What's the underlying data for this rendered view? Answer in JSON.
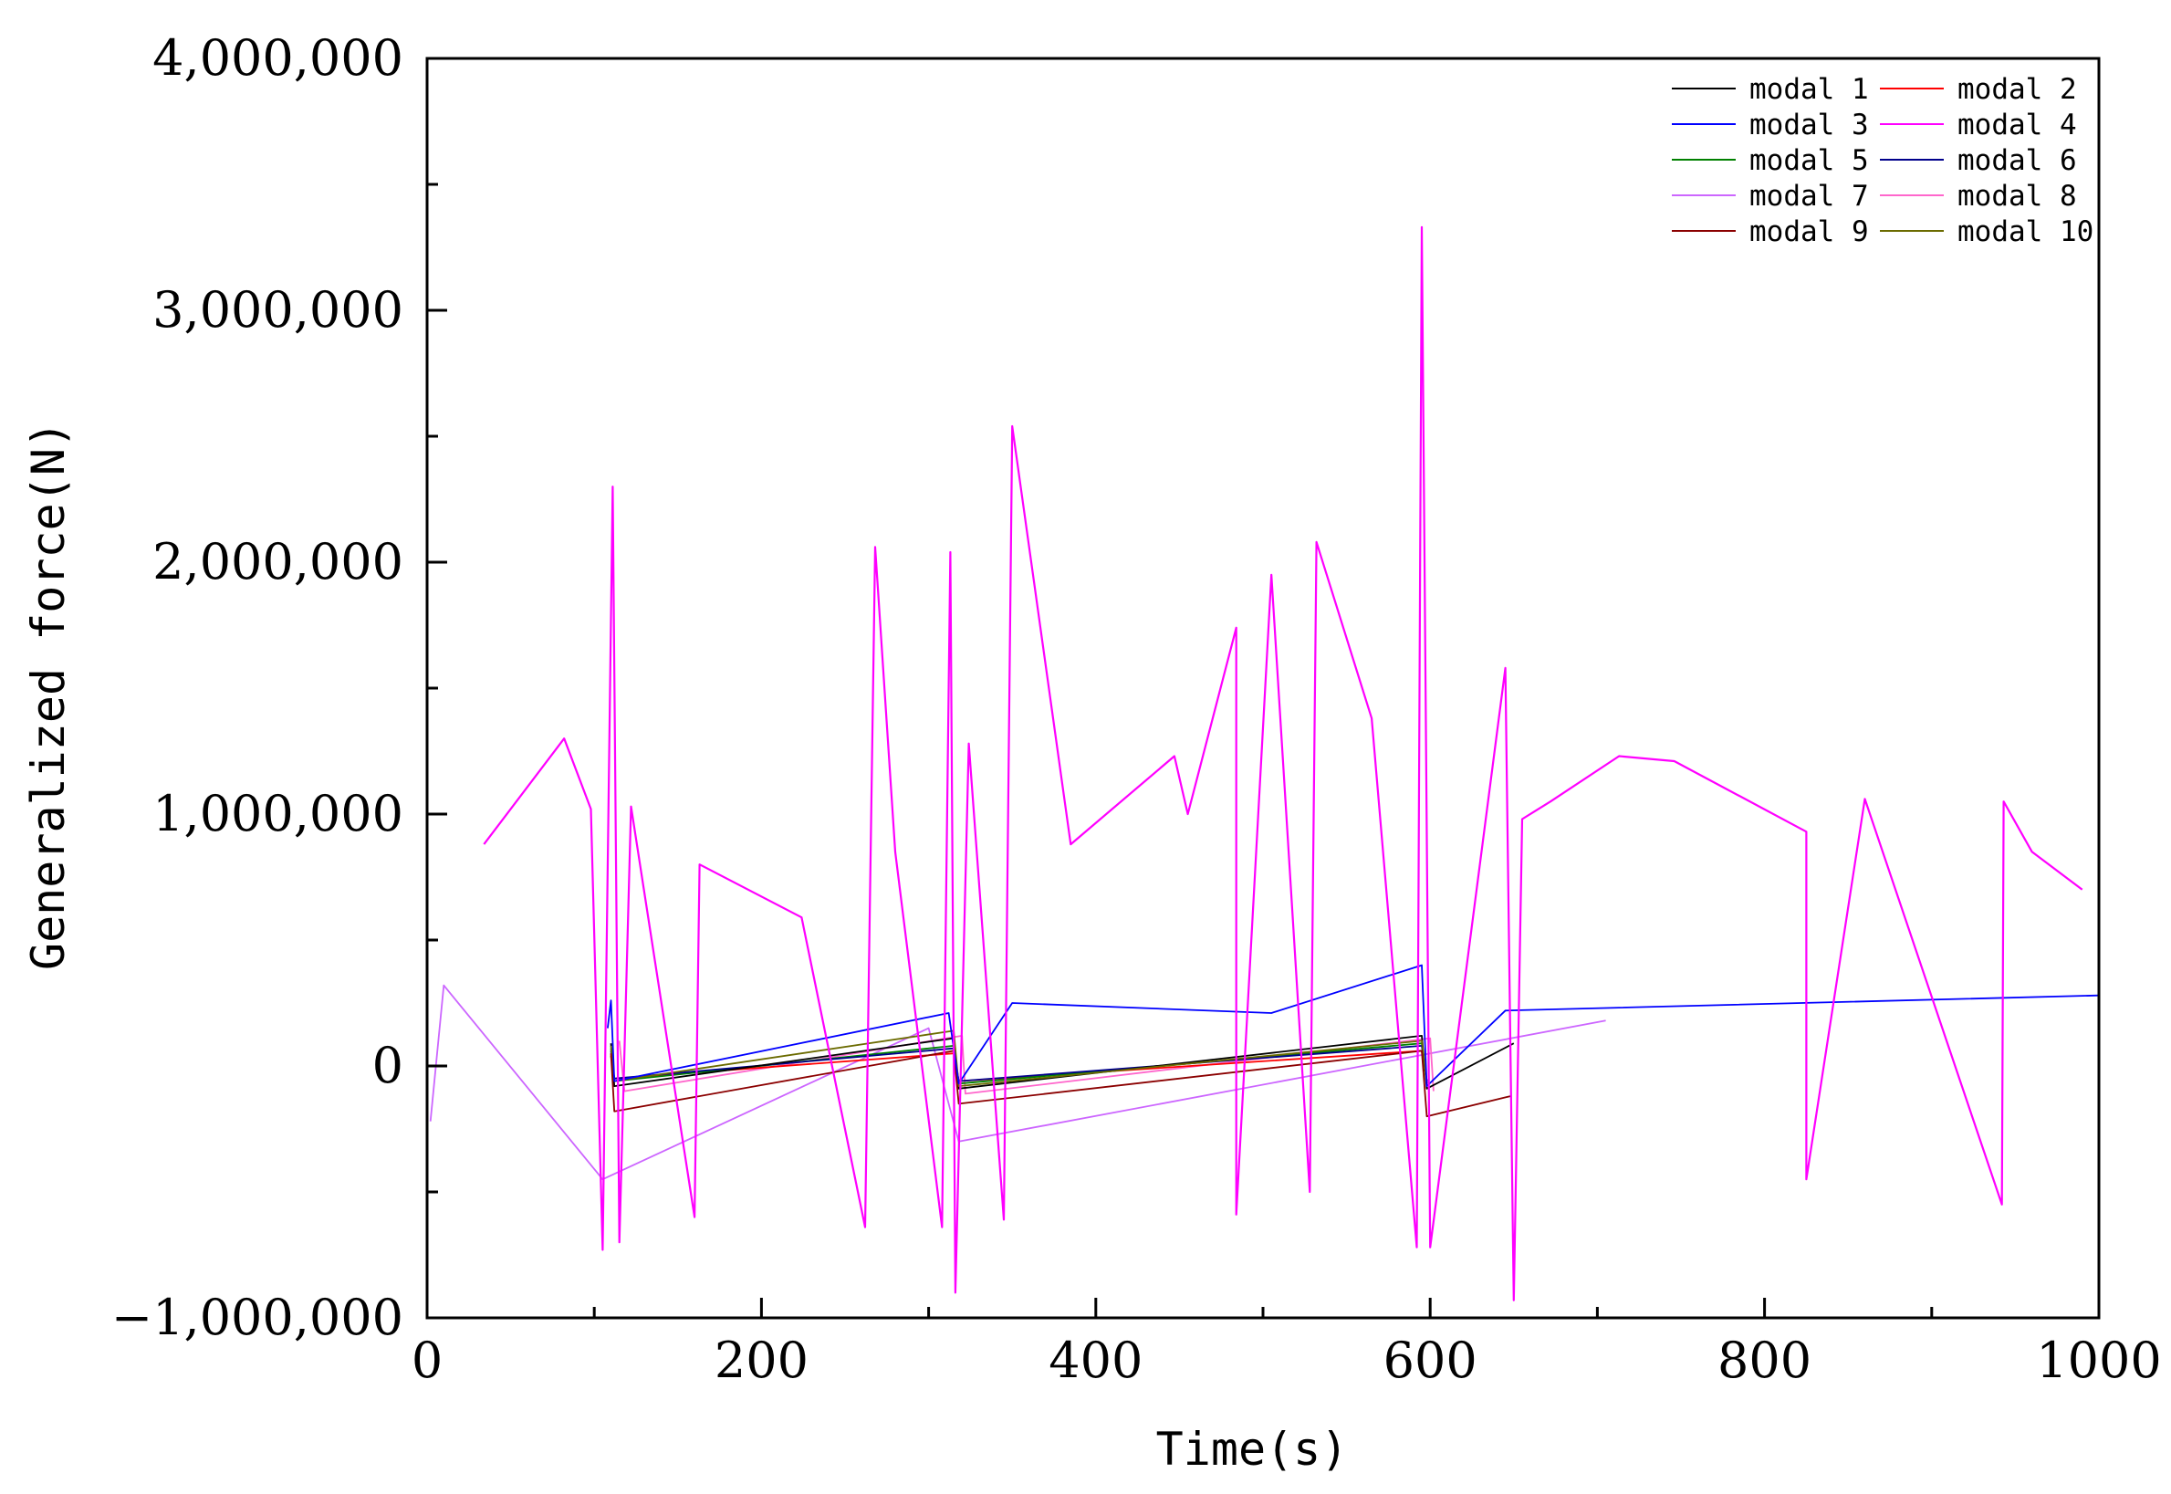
{
  "chart_data": {
    "type": "line",
    "title": "",
    "xlabel": "Time(s)",
    "ylabel": "Generalized force(N)",
    "xlim": [
      0,
      1000
    ],
    "ylim": [
      -1000000,
      4000000
    ],
    "x_ticks": [
      0,
      200,
      400,
      600,
      800,
      1000
    ],
    "x_tick_labels": [
      "0",
      "200",
      "400",
      "600",
      "800",
      "1000"
    ],
    "y_ticks": [
      -1000000,
      0,
      1000000,
      2000000,
      3000000,
      4000000
    ],
    "y_tick_labels": [
      "−1,000,000",
      "0",
      "1,000,000",
      "2,000,000",
      "3,000,000",
      "4,000,000"
    ],
    "grid": false,
    "legend_position": "top-right",
    "legend_columns": 2,
    "series": [
      {
        "name": "modal 1",
        "color": "#000000",
        "peak_values": [
          [
            110,
            90000
          ],
          [
            315,
            110000
          ],
          [
            595,
            120000
          ],
          [
            650,
            90000
          ]
        ],
        "trough_values": [
          [
            112,
            -80000
          ],
          [
            318,
            -90000
          ],
          [
            598,
            -90000
          ]
        ]
      },
      {
        "name": "modal 2",
        "color": "#ff0000",
        "peak_values": [
          [
            110,
            40000
          ],
          [
            315,
            50000
          ],
          [
            595,
            60000
          ]
        ],
        "trough_values": [
          [
            112,
            -50000
          ],
          [
            318,
            -60000
          ],
          [
            598,
            -60000
          ]
        ]
      },
      {
        "name": "modal 3",
        "color": "#0000ff",
        "peak_values": [
          [
            108,
            150000
          ],
          [
            110,
            260000
          ],
          [
            312,
            210000
          ],
          [
            350,
            250000
          ],
          [
            505,
            210000
          ],
          [
            595,
            400000
          ],
          [
            645,
            220000
          ],
          [
            1000,
            280000
          ]
        ],
        "trough_values": [
          [
            112,
            -60000
          ],
          [
            318,
            -70000
          ],
          [
            598,
            -80000
          ]
        ]
      },
      {
        "name": "modal 4",
        "color": "#ff00ff",
        "peak_values": [
          [
            34,
            880000
          ],
          [
            82,
            1300000
          ],
          [
            98,
            1020000
          ],
          [
            111,
            2300000
          ],
          [
            122,
            1030000
          ],
          [
            163,
            800000
          ],
          [
            224,
            590000
          ],
          [
            268,
            2060000
          ],
          [
            280,
            850000
          ],
          [
            313,
            2040000
          ],
          [
            324,
            1280000
          ],
          [
            350,
            2540000
          ],
          [
            385,
            880000
          ],
          [
            447,
            1230000
          ],
          [
            455,
            1000000
          ],
          [
            484,
            1740000
          ],
          [
            505,
            1950000
          ],
          [
            532,
            2080000
          ],
          [
            565,
            1380000
          ],
          [
            595,
            3330000
          ],
          [
            645,
            1580000
          ],
          [
            655,
            980000
          ],
          [
            672,
            1050000
          ],
          [
            713,
            1230000
          ],
          [
            746,
            1210000
          ],
          [
            825,
            930000
          ],
          [
            860,
            1060000
          ],
          [
            943,
            1050000
          ],
          [
            960,
            850000
          ],
          [
            990,
            700000
          ]
        ],
        "trough_values": [
          [
            105,
            -730000
          ],
          [
            115,
            -700000
          ],
          [
            160,
            -600000
          ],
          [
            262,
            -640000
          ],
          [
            308,
            -640000
          ],
          [
            316,
            -900000
          ],
          [
            345,
            -610000
          ],
          [
            484,
            -590000
          ],
          [
            528,
            -500000
          ],
          [
            592,
            -720000
          ],
          [
            600,
            -720000
          ],
          [
            650,
            -930000
          ],
          [
            825,
            -450000
          ],
          [
            942,
            -550000
          ]
        ]
      },
      {
        "name": "modal 5",
        "color": "#008000",
        "peak_values": [
          [
            110,
            70000
          ],
          [
            315,
            80000
          ],
          [
            595,
            90000
          ]
        ],
        "trough_values": [
          [
            112,
            -60000
          ],
          [
            318,
            -70000
          ],
          [
            598,
            -70000
          ]
        ]
      },
      {
        "name": "modal 6",
        "color": "#00008b",
        "peak_values": [
          [
            110,
            60000
          ],
          [
            315,
            70000
          ],
          [
            595,
            80000
          ]
        ],
        "trough_values": [
          [
            112,
            -50000
          ],
          [
            318,
            -60000
          ],
          [
            598,
            -60000
          ]
        ]
      },
      {
        "name": "modal 7",
        "color": "#cc66ff",
        "peak_values": [
          [
            10,
            320000
          ],
          [
            300,
            150000
          ],
          [
            705,
            180000
          ]
        ],
        "trough_values": [
          [
            2,
            -220000
          ],
          [
            105,
            -450000
          ],
          [
            318,
            -300000
          ]
        ]
      },
      {
        "name": "modal 8",
        "color": "#ff66cc",
        "peak_values": [
          [
            115,
            100000
          ],
          [
            320,
            120000
          ],
          [
            600,
            110000
          ]
        ],
        "trough_values": [
          [
            118,
            -100000
          ],
          [
            322,
            -110000
          ],
          [
            602,
            -100000
          ]
        ]
      },
      {
        "name": "modal 9",
        "color": "#8b0000",
        "peak_values": [
          [
            110,
            50000
          ],
          [
            315,
            60000
          ],
          [
            595,
            60000
          ]
        ],
        "trough_values": [
          [
            112,
            -180000
          ],
          [
            318,
            -150000
          ],
          [
            598,
            -200000
          ],
          [
            648,
            -120000
          ]
        ]
      },
      {
        "name": "modal 10",
        "color": "#6b6b00",
        "peak_values": [
          [
            110,
            80000
          ],
          [
            315,
            140000
          ],
          [
            595,
            100000
          ]
        ],
        "trough_values": [
          [
            112,
            -60000
          ],
          [
            318,
            -80000
          ],
          [
            598,
            -70000
          ]
        ]
      }
    ]
  }
}
